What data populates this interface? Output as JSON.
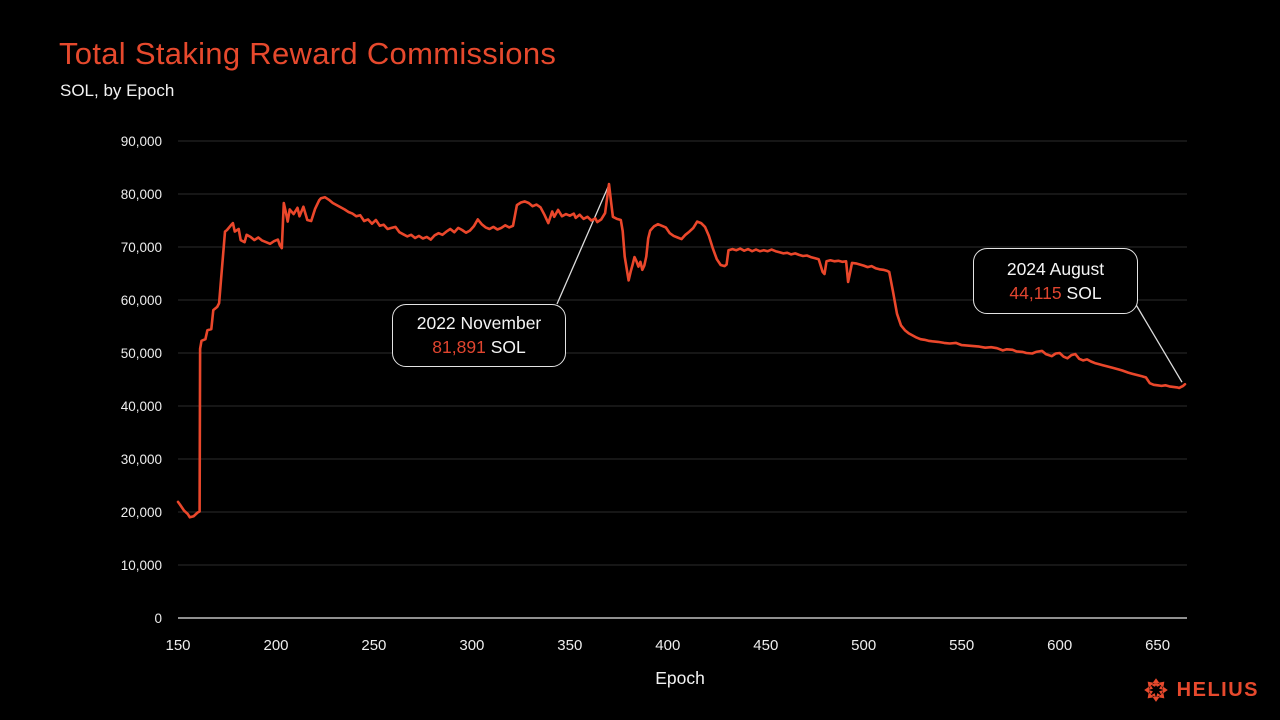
{
  "header": {
    "title": "Total Staking Reward Commissions",
    "subtitle": "SOL, by Epoch"
  },
  "footer": {
    "brand": "HELIUS"
  },
  "colors": {
    "background": "#000000",
    "accent": "#E6492D",
    "line": "#EA472B",
    "grid": "#2D2D2D",
    "zero_axis": "#BFBFBF",
    "text": "#F0F0F0",
    "annotation_border": "#E3E3E3",
    "leader_line": "#DCDCDC",
    "annotation_number": "#E0452F"
  },
  "chart_data": {
    "type": "line",
    "title": "Total Staking Reward Commissions",
    "subtitle": "SOL, by Epoch",
    "xlabel": "Epoch",
    "ylabel": "SOL",
    "xlim": [
      150,
      665
    ],
    "ylim": [
      0,
      90000
    ],
    "xticks": [
      150,
      200,
      250,
      300,
      350,
      400,
      450,
      500,
      550,
      600,
      650
    ],
    "yticks": [
      0,
      10000,
      20000,
      30000,
      40000,
      50000,
      60000,
      70000,
      80000,
      90000
    ],
    "grid": "horizontal-only",
    "legend": "none",
    "series": [
      {
        "name": "Total staking reward commissions",
        "unit": "SOL",
        "points": [
          [
            150,
            21900
          ],
          [
            151,
            21400
          ],
          [
            153,
            20300
          ],
          [
            155,
            19600
          ],
          [
            156,
            19000
          ],
          [
            158,
            19200
          ],
          [
            160,
            19900
          ],
          [
            161,
            20100
          ],
          [
            161.3,
            50800
          ],
          [
            162,
            52300
          ],
          [
            164,
            52600
          ],
          [
            165,
            54300
          ],
          [
            167,
            54500
          ],
          [
            168,
            58100
          ],
          [
            170,
            58700
          ],
          [
            171,
            59400
          ],
          [
            172,
            64000
          ],
          [
            174,
            72900
          ],
          [
            175,
            73200
          ],
          [
            177,
            74100
          ],
          [
            178,
            74500
          ],
          [
            179,
            72900
          ],
          [
            181,
            73400
          ],
          [
            182,
            71300
          ],
          [
            184,
            70900
          ],
          [
            185,
            72300
          ],
          [
            187,
            71900
          ],
          [
            189,
            71300
          ],
          [
            191,
            71800
          ],
          [
            193,
            71200
          ],
          [
            195,
            70900
          ],
          [
            197,
            70600
          ],
          [
            199,
            71100
          ],
          [
            201,
            71400
          ],
          [
            202,
            70300
          ],
          [
            203,
            69800
          ],
          [
            204,
            78300
          ],
          [
            205,
            76600
          ],
          [
            206,
            74800
          ],
          [
            207,
            77100
          ],
          [
            209,
            76200
          ],
          [
            211,
            77400
          ],
          [
            212,
            75800
          ],
          [
            214,
            77600
          ],
          [
            216,
            75100
          ],
          [
            218,
            74900
          ],
          [
            220,
            77200
          ],
          [
            222,
            78800
          ],
          [
            223,
            79200
          ],
          [
            225,
            79400
          ],
          [
            227,
            78900
          ],
          [
            229,
            78300
          ],
          [
            231,
            77900
          ],
          [
            233,
            77500
          ],
          [
            235,
            77100
          ],
          [
            237,
            76600
          ],
          [
            239,
            76300
          ],
          [
            241,
            75800
          ],
          [
            243,
            76000
          ],
          [
            245,
            74900
          ],
          [
            247,
            75200
          ],
          [
            249,
            74400
          ],
          [
            251,
            75100
          ],
          [
            253,
            74000
          ],
          [
            255,
            74200
          ],
          [
            257,
            73400
          ],
          [
            259,
            73600
          ],
          [
            261,
            73800
          ],
          [
            263,
            72800
          ],
          [
            265,
            72400
          ],
          [
            267,
            72000
          ],
          [
            269,
            72300
          ],
          [
            271,
            71700
          ],
          [
            273,
            72100
          ],
          [
            275,
            71600
          ],
          [
            277,
            71900
          ],
          [
            279,
            71400
          ],
          [
            281,
            72200
          ],
          [
            283,
            72600
          ],
          [
            285,
            72300
          ],
          [
            287,
            72900
          ],
          [
            289,
            73400
          ],
          [
            291,
            72800
          ],
          [
            293,
            73600
          ],
          [
            295,
            73200
          ],
          [
            297,
            72700
          ],
          [
            299,
            73100
          ],
          [
            301,
            73900
          ],
          [
            303,
            75200
          ],
          [
            305,
            74300
          ],
          [
            307,
            73700
          ],
          [
            309,
            73400
          ],
          [
            311,
            73800
          ],
          [
            313,
            73300
          ],
          [
            315,
            73600
          ],
          [
            317,
            74100
          ],
          [
            319,
            73700
          ],
          [
            321,
            74000
          ],
          [
            323,
            77900
          ],
          [
            325,
            78400
          ],
          [
            327,
            78600
          ],
          [
            329,
            78300
          ],
          [
            331,
            77700
          ],
          [
            333,
            78000
          ],
          [
            335,
            77500
          ],
          [
            337,
            76100
          ],
          [
            339,
            74500
          ],
          [
            341,
            76700
          ],
          [
            342,
            75700
          ],
          [
            344,
            77000
          ],
          [
            346,
            75800
          ],
          [
            348,
            76200
          ],
          [
            350,
            75900
          ],
          [
            352,
            76300
          ],
          [
            353,
            75500
          ],
          [
            355,
            76100
          ],
          [
            357,
            75300
          ],
          [
            359,
            75700
          ],
          [
            361,
            75000
          ],
          [
            363,
            75400
          ],
          [
            364,
            74700
          ],
          [
            366,
            75200
          ],
          [
            368,
            76400
          ],
          [
            370,
            81891
          ],
          [
            371,
            78600
          ],
          [
            372,
            75700
          ],
          [
            374,
            75300
          ],
          [
            376,
            75100
          ],
          [
            377,
            73000
          ],
          [
            378,
            68200
          ],
          [
            380,
            63700
          ],
          [
            381,
            65300
          ],
          [
            382,
            66600
          ],
          [
            383,
            68100
          ],
          [
            384,
            67300
          ],
          [
            385,
            66300
          ],
          [
            386,
            67200
          ],
          [
            387,
            65700
          ],
          [
            388,
            66500
          ],
          [
            389,
            68200
          ],
          [
            390,
            71600
          ],
          [
            391,
            73100
          ],
          [
            393,
            73900
          ],
          [
            395,
            74300
          ],
          [
            397,
            74000
          ],
          [
            399,
            73700
          ],
          [
            401,
            72600
          ],
          [
            403,
            72100
          ],
          [
            405,
            71800
          ],
          [
            407,
            71500
          ],
          [
            409,
            72300
          ],
          [
            411,
            72900
          ],
          [
            413,
            73600
          ],
          [
            415,
            74800
          ],
          [
            417,
            74500
          ],
          [
            419,
            73800
          ],
          [
            421,
            72100
          ],
          [
            423,
            69700
          ],
          [
            425,
            67700
          ],
          [
            427,
            66600
          ],
          [
            429,
            66400
          ],
          [
            430,
            66700
          ],
          [
            431,
            69400
          ],
          [
            433,
            69600
          ],
          [
            435,
            69400
          ],
          [
            437,
            69700
          ],
          [
            439,
            69300
          ],
          [
            441,
            69600
          ],
          [
            443,
            69200
          ],
          [
            445,
            69500
          ],
          [
            447,
            69200
          ],
          [
            449,
            69400
          ],
          [
            451,
            69200
          ],
          [
            453,
            69500
          ],
          [
            455,
            69200
          ],
          [
            457,
            69000
          ],
          [
            459,
            68800
          ],
          [
            461,
            68900
          ],
          [
            463,
            68600
          ],
          [
            465,
            68800
          ],
          [
            467,
            68500
          ],
          [
            469,
            68300
          ],
          [
            471,
            68400
          ],
          [
            473,
            68100
          ],
          [
            475,
            67900
          ],
          [
            477,
            67700
          ],
          [
            479,
            65300
          ],
          [
            480,
            64900
          ],
          [
            481,
            67300
          ],
          [
            483,
            67500
          ],
          [
            485,
            67300
          ],
          [
            487,
            67400
          ],
          [
            489,
            67200
          ],
          [
            491,
            67300
          ],
          [
            492,
            63400
          ],
          [
            493,
            65100
          ],
          [
            494,
            67000
          ],
          [
            496,
            66900
          ],
          [
            498,
            66700
          ],
          [
            500,
            66500
          ],
          [
            502,
            66200
          ],
          [
            504,
            66400
          ],
          [
            506,
            66000
          ],
          [
            508,
            65800
          ],
          [
            510,
            65700
          ],
          [
            512,
            65500
          ],
          [
            513,
            65300
          ],
          [
            515,
            61500
          ],
          [
            517,
            57400
          ],
          [
            519,
            55200
          ],
          [
            521,
            54300
          ],
          [
            523,
            53700
          ],
          [
            525,
            53300
          ],
          [
            527,
            52900
          ],
          [
            529,
            52600
          ],
          [
            531,
            52500
          ],
          [
            533,
            52300
          ],
          [
            535,
            52200
          ],
          [
            538,
            52100
          ],
          [
            541,
            51900
          ],
          [
            544,
            51800
          ],
          [
            547,
            51900
          ],
          [
            550,
            51500
          ],
          [
            553,
            51400
          ],
          [
            556,
            51300
          ],
          [
            559,
            51200
          ],
          [
            562,
            51000
          ],
          [
            565,
            51100
          ],
          [
            568,
            50900
          ],
          [
            571,
            50500
          ],
          [
            573,
            50700
          ],
          [
            576,
            50600
          ],
          [
            578,
            50300
          ],
          [
            581,
            50200
          ],
          [
            583,
            50000
          ],
          [
            586,
            49900
          ],
          [
            588,
            50200
          ],
          [
            591,
            50400
          ],
          [
            593,
            49800
          ],
          [
            596,
            49400
          ],
          [
            598,
            49900
          ],
          [
            600,
            50000
          ],
          [
            602,
            49300
          ],
          [
            604,
            49000
          ],
          [
            606,
            49600
          ],
          [
            608,
            49800
          ],
          [
            610,
            48900
          ],
          [
            612,
            48600
          ],
          [
            614,
            48800
          ],
          [
            616,
            48400
          ],
          [
            618,
            48100
          ],
          [
            620,
            47900
          ],
          [
            622,
            47700
          ],
          [
            624,
            47500
          ],
          [
            627,
            47200
          ],
          [
            630,
            46900
          ],
          [
            632,
            46700
          ],
          [
            635,
            46300
          ],
          [
            637,
            46100
          ],
          [
            640,
            45800
          ],
          [
            642,
            45600
          ],
          [
            644,
            45400
          ],
          [
            646,
            44300
          ],
          [
            648,
            44000
          ],
          [
            650,
            43900
          ],
          [
            652,
            43800
          ],
          [
            654,
            43900
          ],
          [
            656,
            43700
          ],
          [
            658,
            43600
          ],
          [
            660,
            43500
          ],
          [
            661,
            43400
          ],
          [
            662,
            43600
          ],
          [
            663,
            43800
          ],
          [
            664,
            44115
          ]
        ]
      }
    ],
    "annotations": [
      {
        "label": "2022 November",
        "value": 81891,
        "value_text": "81,891",
        "unit": "SOL",
        "epoch": 370
      },
      {
        "label": "2024 August",
        "value": 44115,
        "value_text": "44,115",
        "unit": "SOL",
        "epoch": 664
      }
    ]
  }
}
